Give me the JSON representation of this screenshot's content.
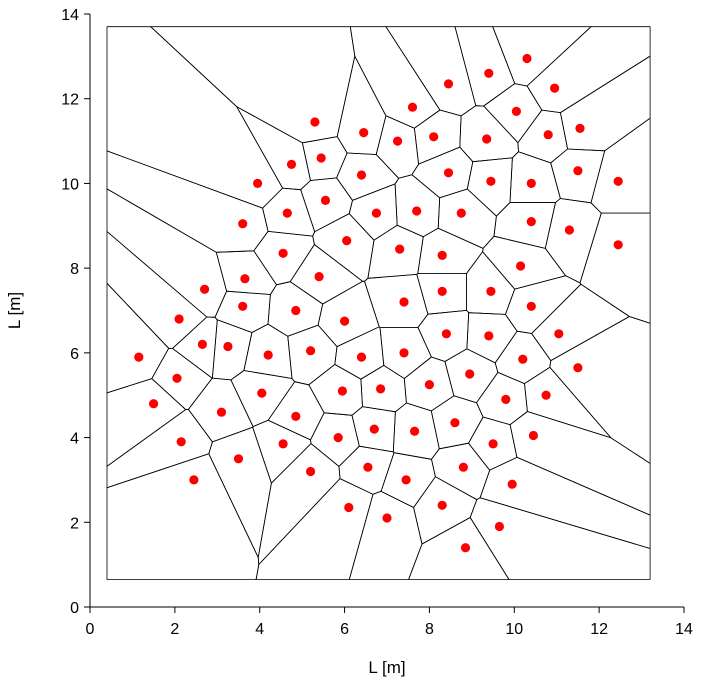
{
  "chart_data": {
    "type": "scatter",
    "title": "",
    "xlabel": "L [m]",
    "ylabel": "L [m]",
    "xlim": [
      0,
      14
    ],
    "ylim": [
      0,
      14
    ],
    "xticks": [
      0,
      2,
      4,
      6,
      8,
      10,
      12,
      14
    ],
    "yticks": [
      0,
      2,
      4,
      6,
      8,
      10,
      12,
      14
    ],
    "grid": false,
    "legend": "none",
    "point_color": "#ff0000",
    "edge_color": "#000000",
    "points": [
      [
        1.15,
        5.9
      ],
      [
        1.5,
        4.8
      ],
      [
        2.05,
        5.4
      ],
      [
        2.1,
        6.8
      ],
      [
        2.15,
        3.9
      ],
      [
        2.45,
        3.0
      ],
      [
        2.65,
        6.2
      ],
      [
        2.7,
        7.5
      ],
      [
        3.1,
        4.6
      ],
      [
        3.25,
        6.15
      ],
      [
        3.5,
        3.5
      ],
      [
        3.6,
        7.1
      ],
      [
        3.6,
        9.05
      ],
      [
        3.65,
        7.75
      ],
      [
        3.95,
        10.0
      ],
      [
        4.05,
        5.05
      ],
      [
        4.2,
        5.95
      ],
      [
        4.55,
        3.85
      ],
      [
        4.55,
        8.35
      ],
      [
        4.65,
        9.3
      ],
      [
        4.75,
        10.45
      ],
      [
        4.85,
        7.0
      ],
      [
        4.85,
        4.5
      ],
      [
        5.2,
        3.2
      ],
      [
        5.2,
        6.05
      ],
      [
        5.3,
        11.45
      ],
      [
        5.4,
        7.8
      ],
      [
        5.45,
        10.6
      ],
      [
        5.55,
        9.6
      ],
      [
        5.85,
        4.0
      ],
      [
        5.95,
        5.1
      ],
      [
        6.0,
        6.75
      ],
      [
        6.05,
        8.65
      ],
      [
        6.1,
        2.35
      ],
      [
        6.4,
        10.2
      ],
      [
        6.4,
        5.9
      ],
      [
        6.45,
        11.2
      ],
      [
        6.55,
        3.3
      ],
      [
        6.7,
        4.2
      ],
      [
        6.75,
        9.3
      ],
      [
        6.85,
        5.15
      ],
      [
        7.0,
        2.1
      ],
      [
        7.25,
        11.0
      ],
      [
        7.3,
        8.45
      ],
      [
        7.4,
        6.0
      ],
      [
        7.4,
        7.2
      ],
      [
        7.45,
        3.0
      ],
      [
        7.6,
        11.8
      ],
      [
        7.65,
        4.15
      ],
      [
        7.7,
        9.35
      ],
      [
        8.0,
        5.25
      ],
      [
        8.1,
        11.1
      ],
      [
        8.3,
        7.45
      ],
      [
        8.3,
        8.3
      ],
      [
        8.3,
        2.4
      ],
      [
        8.4,
        6.45
      ],
      [
        8.45,
        10.25
      ],
      [
        8.45,
        12.35
      ],
      [
        8.6,
        4.35
      ],
      [
        8.75,
        9.3
      ],
      [
        8.8,
        3.3
      ],
      [
        8.85,
        1.4
      ],
      [
        8.95,
        5.5
      ],
      [
        9.35,
        11.05
      ],
      [
        9.4,
        6.4
      ],
      [
        9.4,
        12.6
      ],
      [
        9.45,
        7.45
      ],
      [
        9.45,
        10.05
      ],
      [
        9.5,
        3.85
      ],
      [
        9.65,
        1.9
      ],
      [
        9.8,
        4.9
      ],
      [
        9.95,
        2.9
      ],
      [
        10.05,
        11.7
      ],
      [
        10.15,
        8.05
      ],
      [
        10.2,
        5.85
      ],
      [
        10.3,
        12.95
      ],
      [
        10.4,
        7.1
      ],
      [
        10.4,
        9.1
      ],
      [
        10.4,
        10.0
      ],
      [
        10.45,
        4.05
      ],
      [
        10.75,
        5.0
      ],
      [
        10.8,
        11.15
      ],
      [
        10.95,
        12.25
      ],
      [
        11.05,
        6.45
      ],
      [
        11.3,
        8.9
      ],
      [
        11.5,
        5.65
      ],
      [
        11.5,
        10.3
      ],
      [
        11.55,
        11.3
      ],
      [
        12.45,
        10.05
      ],
      [
        12.45,
        8.55
      ]
    ]
  }
}
